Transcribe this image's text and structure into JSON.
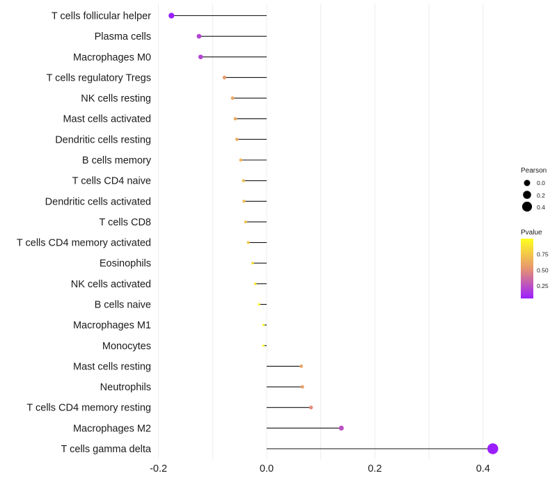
{
  "chart_data": {
    "type": "lollipop",
    "categories": [
      "T cells follicular helper",
      "Plasma cells",
      "Macrophages M0",
      "T cells regulatory  Tregs",
      "NK cells resting",
      "Mast cells activated",
      "Dendritic cells resting",
      "B cells memory",
      "T cells CD4 naive",
      "Dendritic cells activated",
      "T cells CD8",
      "T cells CD4 memory activated",
      "Eosinophils",
      "NK cells activated",
      "B cells naive",
      "Macrophages M1",
      "Monocytes",
      "Mast cells resting",
      "Neutrophils",
      "T cells CD4 memory resting",
      "Macrophages M2",
      "T cells gamma delta"
    ],
    "values": [
      -0.176,
      -0.125,
      -0.122,
      -0.078,
      -0.063,
      -0.058,
      -0.055,
      -0.048,
      -0.043,
      -0.042,
      -0.039,
      -0.034,
      -0.026,
      -0.021,
      -0.014,
      -0.006,
      -0.006,
      0.064,
      0.066,
      0.082,
      0.138,
      0.418
    ],
    "pvalues": [
      0.05,
      0.2,
      0.2,
      0.55,
      0.6,
      0.62,
      0.63,
      0.68,
      0.7,
      0.7,
      0.72,
      0.75,
      0.85,
      0.88,
      0.95,
      0.99,
      0.99,
      0.6,
      0.58,
      0.5,
      0.25,
      0.05
    ],
    "xlabel": "",
    "ylabel": "",
    "xlim": [
      -0.2,
      0.43
    ],
    "xticks": [
      "-0.2",
      "0.0",
      "0.2",
      "0.4"
    ],
    "xtick_values": [
      -0.2,
      0.0,
      0.2,
      0.4
    ],
    "grid": "vertical",
    "legend": {
      "size_title": "Pearson",
      "size_labels": [
        "0.0",
        "0.2",
        "0.4"
      ],
      "size_values": [
        0.0,
        0.2,
        0.4
      ],
      "color_title": "Pvalue",
      "color_labels": [
        "0.75",
        "0.50",
        "0.25"
      ],
      "color_values": [
        0.75,
        0.5,
        0.25
      ],
      "color_range": [
        0.05,
        1.0
      ],
      "position": "right"
    },
    "colors": {
      "low": "#9b1eff",
      "mid": "#e69470",
      "high": "#ffff1e",
      "line": "#111111",
      "grid": "#ececec"
    }
  }
}
